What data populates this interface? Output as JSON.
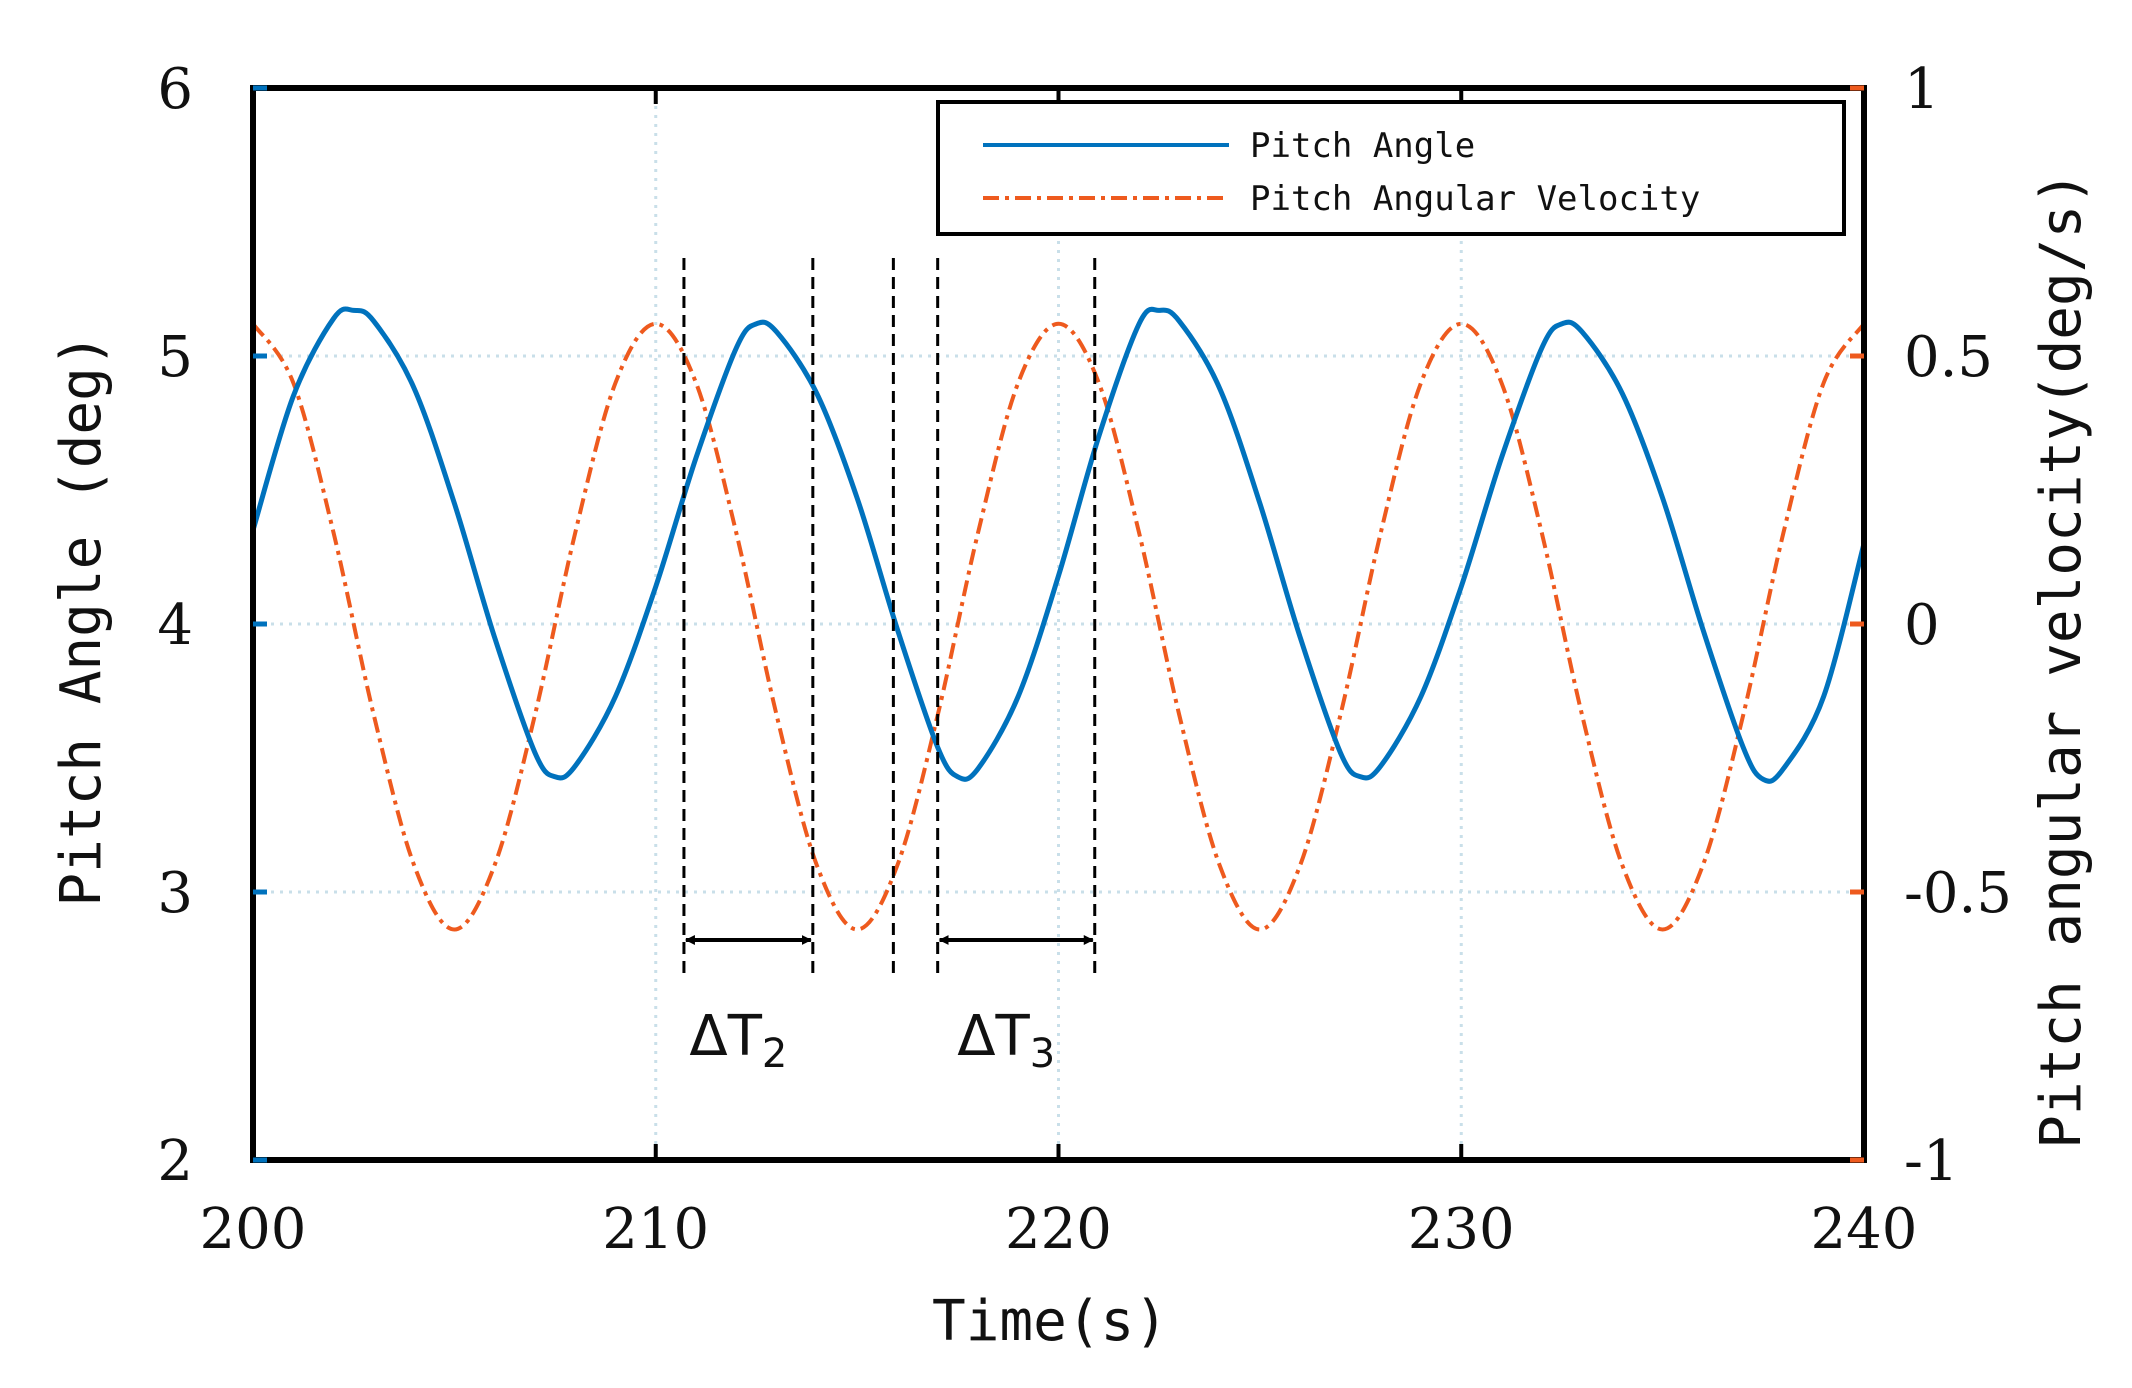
{
  "chart_data": {
    "type": "line",
    "title": "",
    "xlabel": "Time(s)",
    "ylabel_left": "Pitch Angle (deg)",
    "ylabel_right": "Pitch angular velocity(deg/s)",
    "xlim": [
      200,
      240
    ],
    "ylim_left": [
      2,
      6
    ],
    "ylim_right": [
      -1,
      1
    ],
    "x_ticks": [
      "200",
      "210",
      "220",
      "230",
      "240"
    ],
    "y_ticks_left": [
      "2",
      "3",
      "4",
      "5",
      "6"
    ],
    "y_ticks_right": [
      "-1",
      "-0.5",
      "0",
      "0.5",
      "1"
    ],
    "grid": true,
    "legend_position": "top-right",
    "colors": {
      "pitch_angle": "#0072BD",
      "pitch_velocity": "#EE5A1E",
      "axis": "#000000",
      "grid": "#c9dfe9"
    },
    "series": [
      {
        "name": "Pitch Angle",
        "axis": "left",
        "style": "solid",
        "x": [
          200,
          201,
          202,
          202.5,
          203,
          204,
          205,
          206,
          207,
          207.5,
          208,
          209,
          210,
          211,
          212,
          212.5,
          213,
          214,
          215,
          216,
          217,
          217.5,
          218,
          219,
          220,
          221,
          222,
          222.5,
          223,
          224,
          225,
          226,
          227,
          227.5,
          228,
          229,
          230,
          231,
          232,
          232.5,
          233,
          234,
          235,
          236,
          237,
          237.5,
          238,
          239,
          240
        ],
        "values": [
          4.35,
          4.85,
          5.14,
          5.17,
          5.13,
          4.88,
          4.45,
          3.95,
          3.52,
          3.43,
          3.47,
          3.73,
          4.14,
          4.62,
          5.03,
          5.12,
          5.09,
          4.86,
          4.47,
          3.98,
          3.54,
          3.43,
          3.46,
          3.73,
          4.18,
          4.7,
          5.12,
          5.17,
          5.13,
          4.88,
          4.45,
          3.95,
          3.52,
          3.43,
          3.47,
          3.73,
          4.14,
          4.62,
          5.03,
          5.12,
          5.09,
          4.86,
          4.47,
          3.98,
          3.54,
          3.42,
          3.46,
          3.73,
          4.3
        ]
      },
      {
        "name": "Pitch Angular Velocity",
        "axis": "right",
        "style": "dashdot",
        "x": [
          200,
          201,
          202,
          203,
          204,
          205,
          206,
          207,
          208,
          209,
          210,
          211,
          212,
          213,
          214,
          215,
          216,
          217,
          218,
          219,
          220,
          221,
          222,
          223,
          224,
          225,
          226,
          227,
          228,
          229,
          230,
          231,
          232,
          233,
          234,
          235,
          236,
          237,
          238,
          239,
          240
        ],
        "values": [
          0.56,
          0.45,
          0.17,
          -0.17,
          -0.45,
          -0.57,
          -0.45,
          -0.17,
          0.17,
          0.45,
          0.56,
          0.45,
          0.17,
          -0.17,
          -0.45,
          -0.57,
          -0.45,
          -0.17,
          0.17,
          0.45,
          0.56,
          0.45,
          0.17,
          -0.17,
          -0.45,
          -0.57,
          -0.45,
          -0.17,
          0.17,
          0.45,
          0.56,
          0.45,
          0.17,
          -0.17,
          -0.45,
          -0.57,
          -0.45,
          -0.17,
          0.17,
          0.45,
          0.56
        ]
      }
    ],
    "annotations": [
      {
        "label": "ΔT",
        "subscript": "2",
        "x_start": 210.7,
        "x_end": 213.9
      },
      {
        "label": "ΔT",
        "subscript": "3",
        "x_start": 217.0,
        "x_end": 220.9
      }
    ],
    "reference_lines_x": [
      210.7,
      213.9,
      215.9,
      217.0,
      220.9
    ]
  }
}
